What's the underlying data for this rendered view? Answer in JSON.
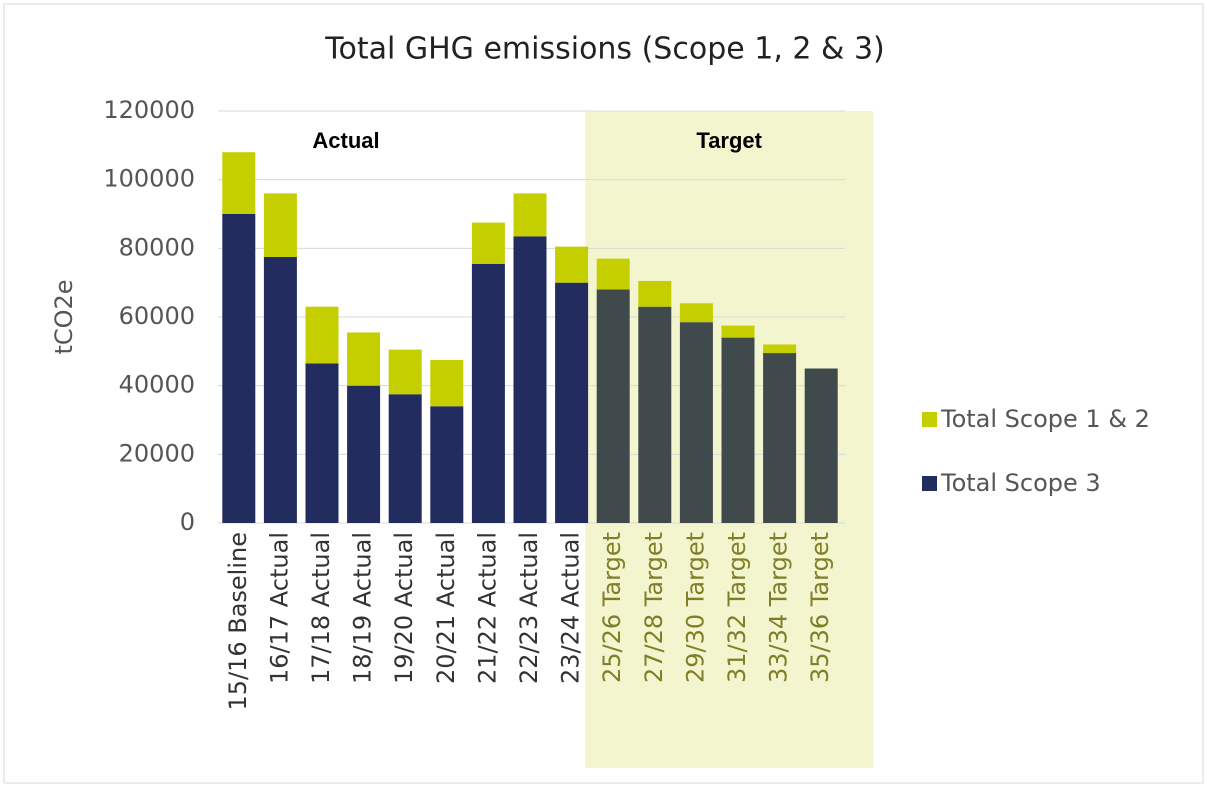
{
  "chart_data": {
    "type": "stacked_bar",
    "title": "Total GHG emissions (Scope 1, 2 & 3)",
    "y_label": "tCO2e",
    "categories": [
      "15/16 Baseline",
      "16/17 Actual",
      "17/18 Actual",
      "18/19 Actual",
      "19/20 Actual",
      "20/21 Actual",
      "21/22 Actual",
      "22/23 Actual",
      "23/24 Actual",
      "25/26 Target",
      "27/28 Target",
      "29/30 Target",
      "31/32 Target",
      "33/34 Target",
      "35/36 Target"
    ],
    "series": [
      {
        "name": "Total Scope 3",
        "color": "#232c5e",
        "colors": [
          "#232c5e",
          "#232c5e",
          "#232c5e",
          "#232c5e",
          "#232c5e",
          "#232c5e",
          "#232c5e",
          "#232c5e",
          "#232c5e",
          "#404a4c",
          "#404a4c",
          "#404a4c",
          "#404a4c",
          "#404a4c",
          "#404a4c"
        ],
        "values": [
          90000,
          77500,
          46500,
          40000,
          37500,
          34000,
          75500,
          83500,
          70000,
          68000,
          63000,
          58500,
          54000,
          49500,
          45000
        ]
      },
      {
        "name": "Total Scope 1 & 2",
        "color": "#c5cf00",
        "values": [
          18000,
          18500,
          16500,
          15500,
          13000,
          13500,
          12000,
          12500,
          10500,
          9000,
          7500,
          5500,
          3500,
          2500,
          0
        ]
      }
    ],
    "ylim": [
      0,
      120000
    ],
    "yticks": [
      0,
      20000,
      40000,
      60000,
      80000,
      100000,
      120000
    ],
    "grid": true,
    "annotations": [
      "Actual",
      "Target"
    ],
    "shaded_region": {
      "from": "25/26 Target",
      "to": "35/36 Target",
      "color": "#f3f5cf",
      "label_color": "#7f7f28"
    },
    "legend": "right"
  }
}
